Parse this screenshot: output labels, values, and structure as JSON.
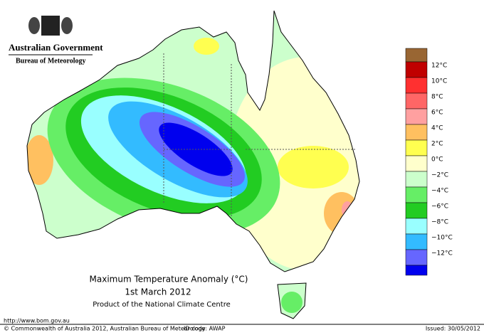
{
  "header": {
    "government": "Australian Government",
    "bureau": "Bureau of Meteorology"
  },
  "caption": {
    "title": "Maximum Temperature Anomaly (°C)",
    "date": "1st March 2012",
    "product": "Product of the National Climate Centre"
  },
  "legend": [
    {
      "label": "12°C",
      "color": "#c00000"
    },
    {
      "label": "10°C",
      "color": "#ff3030"
    },
    {
      "label": "8°C",
      "color": "#ff6666"
    },
    {
      "label": "6°C",
      "color": "#ffa0a0"
    },
    {
      "label": "4°C",
      "color": "#ffc060"
    },
    {
      "label": "2°C",
      "color": "#ffff50"
    },
    {
      "label": "0°C",
      "color": "#ffffcc"
    },
    {
      "label": "−2°C",
      "color": "#ccffcc"
    },
    {
      "label": "−4°C",
      "color": "#66ee66"
    },
    {
      "label": "−6°C",
      "color": "#22cc22"
    },
    {
      "label": "−8°C",
      "color": "#99ffff"
    },
    {
      "label": "−10°C",
      "color": "#33bbff"
    },
    {
      "label": "−12°C",
      "color": "#6666ff"
    }
  ],
  "footer": {
    "url": "http://www.bom.gov.au",
    "copyright": "© Commonwealth of Australia 2012, Australian Bureau of Meteorology",
    "id_code": "ID code: AWAP",
    "issued": "Issued: 30/05/2012"
  }
}
